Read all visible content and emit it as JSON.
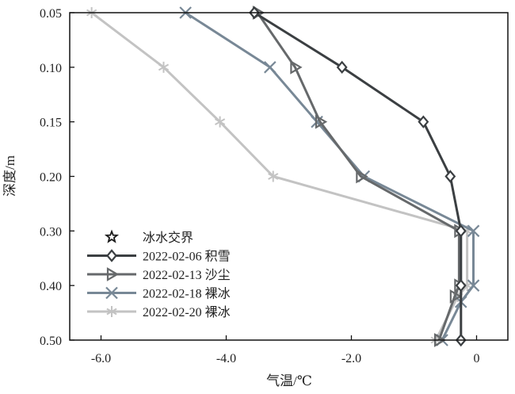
{
  "chart_data": {
    "type": "line",
    "title": "",
    "xlabel": "气温/℃",
    "ylabel": "深度/m",
    "xlim": [
      -6.5,
      0.5
    ],
    "x_ticks": [
      -6.0,
      -4.0,
      -2.0,
      0
    ],
    "x_tick_labels": [
      "-6.0",
      "-4.0",
      "-2.0",
      "0"
    ],
    "y_ticks": [
      0.05,
      0.1,
      0.15,
      0.2,
      0.3,
      0.4,
      0.5
    ],
    "y_tick_labels": [
      "0.05",
      "0.10",
      "0.15",
      "0.20",
      "0.30",
      "0.40",
      "0.50"
    ],
    "y_axis_inverted": true,
    "y_axis_note": "tick spacing is uniform per tick index; 0.20→0.30 occupies one interval",
    "grid": false,
    "legend_position": "lower-left",
    "series": [
      {
        "name": "冰水交界",
        "marker": "star",
        "color": "#1a1a1a",
        "line": false,
        "points": []
      },
      {
        "name": "2022-02-06 积雪",
        "marker": "diamond",
        "color": "#3b3f42",
        "points": [
          {
            "x": -3.55,
            "y": 0.05
          },
          {
            "x": -2.15,
            "y": 0.1
          },
          {
            "x": -0.85,
            "y": 0.15
          },
          {
            "x": -0.42,
            "y": 0.2
          },
          {
            "x": -0.25,
            "y": 0.3
          },
          {
            "x": -0.25,
            "y": 0.4
          },
          {
            "x": -0.25,
            "y": 0.5
          }
        ]
      },
      {
        "name": "2022-02-13 沙尘",
        "marker": "triangle-right",
        "color": "#66696b",
        "points": [
          {
            "x": -3.5,
            "y": 0.05
          },
          {
            "x": -2.9,
            "y": 0.1
          },
          {
            "x": -2.5,
            "y": 0.15
          },
          {
            "x": -1.85,
            "y": 0.2
          },
          {
            "x": -0.28,
            "y": 0.3
          },
          {
            "x": -0.28,
            "y": 0.4
          },
          {
            "x": -0.35,
            "y": 0.42
          },
          {
            "x": -0.6,
            "y": 0.5
          }
        ]
      },
      {
        "name": "2022-02-18 裸冰",
        "marker": "x",
        "color": "#788896",
        "points": [
          {
            "x": -4.65,
            "y": 0.05
          },
          {
            "x": -3.3,
            "y": 0.1
          },
          {
            "x": -2.55,
            "y": 0.15
          },
          {
            "x": -1.8,
            "y": 0.2
          },
          {
            "x": -0.05,
            "y": 0.3
          },
          {
            "x": -0.05,
            "y": 0.4
          },
          {
            "x": -0.25,
            "y": 0.43
          },
          {
            "x": -0.55,
            "y": 0.5
          }
        ]
      },
      {
        "name": "2022-02-20 裸冰",
        "marker": "asterisk",
        "color": "#c3c3c3",
        "points": [
          {
            "x": -6.15,
            "y": 0.05
          },
          {
            "x": -5.0,
            "y": 0.1
          },
          {
            "x": -4.1,
            "y": 0.15
          },
          {
            "x": -3.25,
            "y": 0.2
          },
          {
            "x": -0.15,
            "y": 0.3
          },
          {
            "x": -0.15,
            "y": 0.4
          },
          {
            "x": -0.3,
            "y": 0.42
          },
          {
            "x": -0.65,
            "y": 0.5
          }
        ]
      }
    ]
  }
}
